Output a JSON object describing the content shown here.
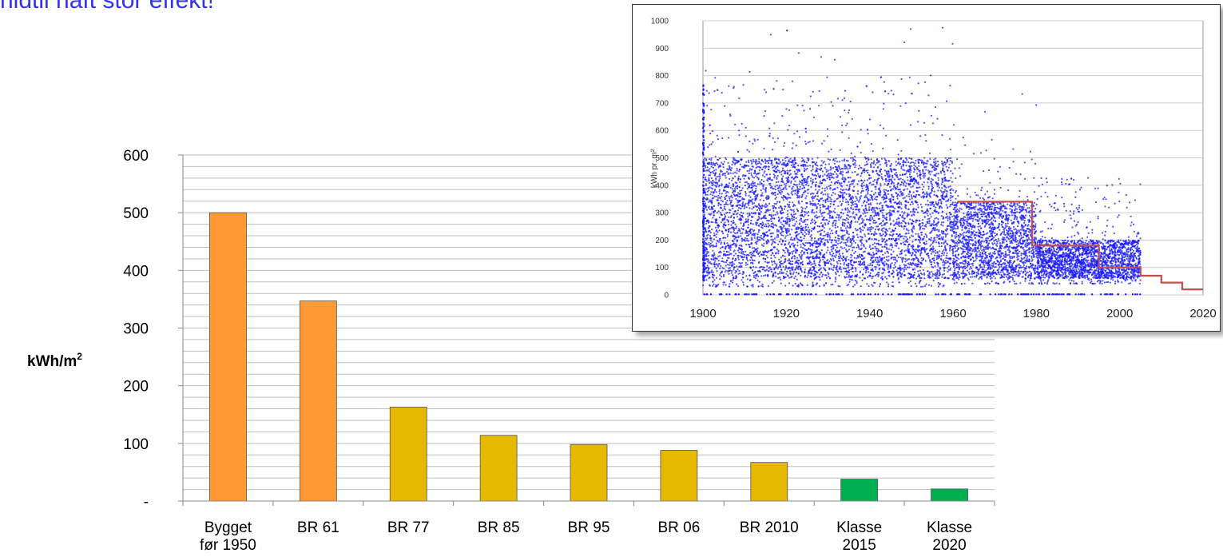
{
  "headline": "hidtil haft stor effekt!",
  "colors": {
    "orange": "#FF9933",
    "yellow": "#E6B800",
    "green": "#00B050",
    "grid": "#bfbfbf",
    "scatter": "#1a1aff",
    "step": "#c0504d",
    "headline": "#3333ee"
  },
  "chart_data": [
    {
      "type": "bar",
      "title": "",
      "xlabel": "",
      "ylabel": "kWh/m²",
      "ylabel_main": "kWh/m",
      "ylabel_sup": "2",
      "ylim": [
        0,
        600
      ],
      "yticks": [
        {
          "value": 0,
          "label": "-"
        },
        {
          "value": 100,
          "label": "100"
        },
        {
          "value": 200,
          "label": "200"
        },
        {
          "value": 300,
          "label": "300"
        },
        {
          "value": 400,
          "label": "400"
        },
        {
          "value": 500,
          "label": "500"
        },
        {
          "value": 600,
          "label": "600"
        }
      ],
      "grid": true,
      "categories": [
        {
          "lines": [
            "Bygget",
            "før 1950"
          ],
          "value": 500,
          "color": "orange"
        },
        {
          "lines": [
            "BR 61"
          ],
          "value": 347,
          "color": "orange"
        },
        {
          "lines": [
            "BR 77"
          ],
          "value": 163,
          "color": "yellow"
        },
        {
          "lines": [
            "BR 85"
          ],
          "value": 114,
          "color": "yellow"
        },
        {
          "lines": [
            "BR 95"
          ],
          "value": 98,
          "color": "yellow"
        },
        {
          "lines": [
            "BR 06"
          ],
          "value": 88,
          "color": "yellow"
        },
        {
          "lines": [
            "BR 2010"
          ],
          "value": 67,
          "color": "yellow"
        },
        {
          "lines": [
            "Klasse",
            "2015"
          ],
          "value": 38,
          "color": "green"
        },
        {
          "lines": [
            "Klasse",
            "2020"
          ],
          "value": 21,
          "color": "green"
        }
      ]
    },
    {
      "type": "scatter",
      "title": "",
      "xlabel": "",
      "ylabel": "kWh pr. m²",
      "xlim": [
        1900,
        2020
      ],
      "ylim": [
        0,
        1000
      ],
      "xticks": [
        1900,
        1920,
        1940,
        1960,
        1980,
        2000,
        2020
      ],
      "yticks": [
        0,
        100,
        200,
        300,
        400,
        500,
        600,
        700,
        800,
        900,
        1000
      ],
      "grid": true,
      "density": [
        {
          "x": [
            1900,
            1960
          ],
          "y_core": [
            60,
            500
          ],
          "y_spread": [
            30,
            800
          ],
          "outliers_max": 980
        },
        {
          "x": [
            1960,
            1980
          ],
          "y_core": [
            60,
            340
          ],
          "y_spread": [
            40,
            500
          ],
          "outliers_max": 740
        },
        {
          "x": [
            1980,
            2005
          ],
          "y_core": [
            60,
            200
          ],
          "y_spread": [
            40,
            430
          ],
          "outliers_max": 430
        }
      ],
      "step_line": [
        {
          "x": [
            1961,
            1979
          ],
          "y": 340
        },
        {
          "x": [
            1979,
            1995
          ],
          "y": 180
        },
        {
          "x": [
            1995,
            2005
          ],
          "y": 100
        },
        {
          "x": [
            2005,
            2010
          ],
          "y": 70
        },
        {
          "x": [
            2010,
            2015
          ],
          "y": 45
        },
        {
          "x": [
            2015,
            2020
          ],
          "y": 20
        }
      ]
    }
  ]
}
